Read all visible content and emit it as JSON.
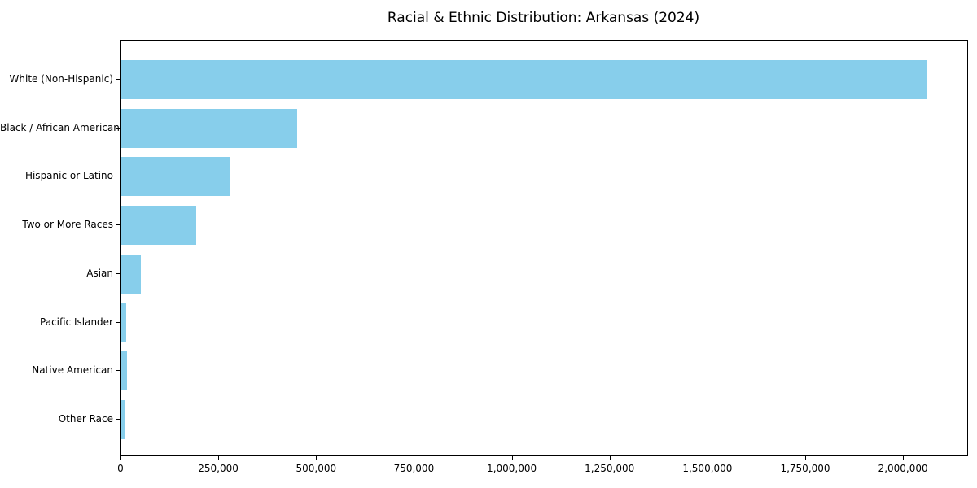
{
  "chart_data": {
    "type": "bar",
    "orientation": "horizontal",
    "title": "Racial & Ethnic Distribution: Arkansas (2024)",
    "categories": [
      "White (Non-Hispanic)",
      "Black / African American",
      "Hispanic or Latino",
      "Two or More Races",
      "Asian",
      "Pacific Islander",
      "Native American",
      "Other Race"
    ],
    "values": [
      2057000,
      449000,
      279000,
      192000,
      50000,
      12000,
      14500,
      9500
    ],
    "xlabel": "",
    "ylabel": "",
    "xlim": [
      0,
      2162000
    ],
    "x_ticks": [
      0,
      250000,
      500000,
      750000,
      1000000,
      1250000,
      1500000,
      1750000,
      2000000
    ],
    "x_tick_labels": [
      "0",
      "250,000",
      "500,000",
      "750,000",
      "1,000,000",
      "1,250,000",
      "1,500,000",
      "1,750,000",
      "2,000,000"
    ],
    "grid": false,
    "legend": null,
    "colors": {
      "bar": "#87CEEB",
      "spine": "#000000",
      "text": "#000000",
      "background": "#ffffff"
    }
  }
}
